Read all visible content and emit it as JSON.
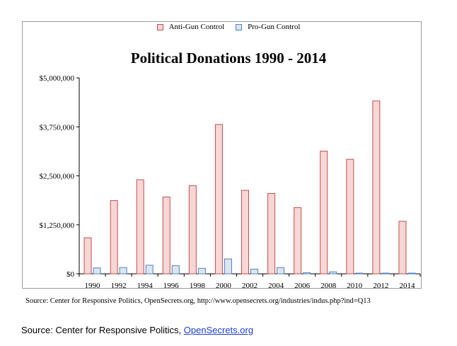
{
  "chart_data": {
    "type": "bar",
    "title": "Political Donations 1990 - 2014",
    "categories": [
      "1990",
      "1992",
      "1994",
      "1996",
      "1998",
      "2000",
      "2002",
      "2004",
      "2006",
      "2008",
      "2010",
      "2012",
      "2014"
    ],
    "series": [
      {
        "name": "Anti-Gun Control",
        "color": "#f7d6d6",
        "stroke": "#c0504d",
        "values": [
          920000,
          1870000,
          2400000,
          1960000,
          2250000,
          3810000,
          2130000,
          2050000,
          1690000,
          3130000,
          2920000,
          4410000,
          1340000
        ]
      },
      {
        "name": "Pro-Gun Control",
        "color": "#dce6f2",
        "stroke": "#4f81bd",
        "values": [
          150000,
          160000,
          220000,
          210000,
          140000,
          380000,
          120000,
          160000,
          30000,
          50000,
          0,
          0,
          0
        ]
      }
    ],
    "ylim": [
      0,
      5000000
    ],
    "yticks": [
      0,
      1250000,
      2500000,
      3750000,
      5000000
    ],
    "ytick_labels": [
      "$0",
      "$1,250,000",
      "$2,500,000",
      "$3,750,000",
      "$5,000,000"
    ],
    "legend_position": "top-center",
    "grid": false
  },
  "legend": {
    "anti_label": "Anti-Gun Control",
    "pro_label": "Pro-Gun Control"
  },
  "footer": {
    "source_note": "Source: Center for Responsive Politics,  OpenSecrets.org, http://www.opensecrets.org/industries/indus.php?ind=Q13",
    "source_prefix": "Source: Center for Responsive Politics, ",
    "source_link": "OpenSecrets.org"
  }
}
